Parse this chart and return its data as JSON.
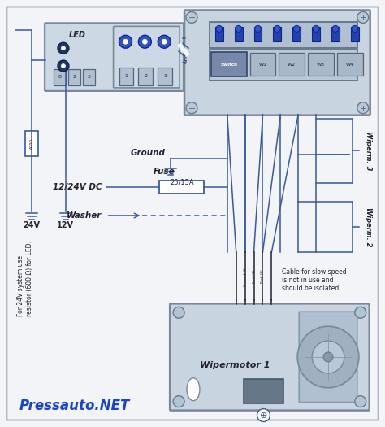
{
  "bg_color": "#f2f4f7",
  "line_color": "#3a5a9a",
  "dark_line": "#222233",
  "component_fill": "#d5dde8",
  "component_border": "#7a8a9a",
  "text_color": "#222233",
  "title_text": "Pressauto.NET",
  "title_color": "#1a44cc",
  "labels": {
    "led": "LED",
    "ground": "Ground",
    "fuse": "Fuse",
    "fuse_rating": "25/15A",
    "dc": "12/24V DC",
    "washer": "Washer",
    "wipermotor": "Wipermotor 1",
    "wiperm3": "Wiperm. 3",
    "wiperm2": "Wiperm. 2",
    "v24": "24V",
    "v12": "12V",
    "cable_note": "Cable for slow speed\nis not in use and\nshould be isolated.",
    "for_24v": "For 24V system use\nresistor (600 Ω) for LED."
  },
  "figsize": [
    4.74,
    5.25
  ],
  "dpi": 100
}
